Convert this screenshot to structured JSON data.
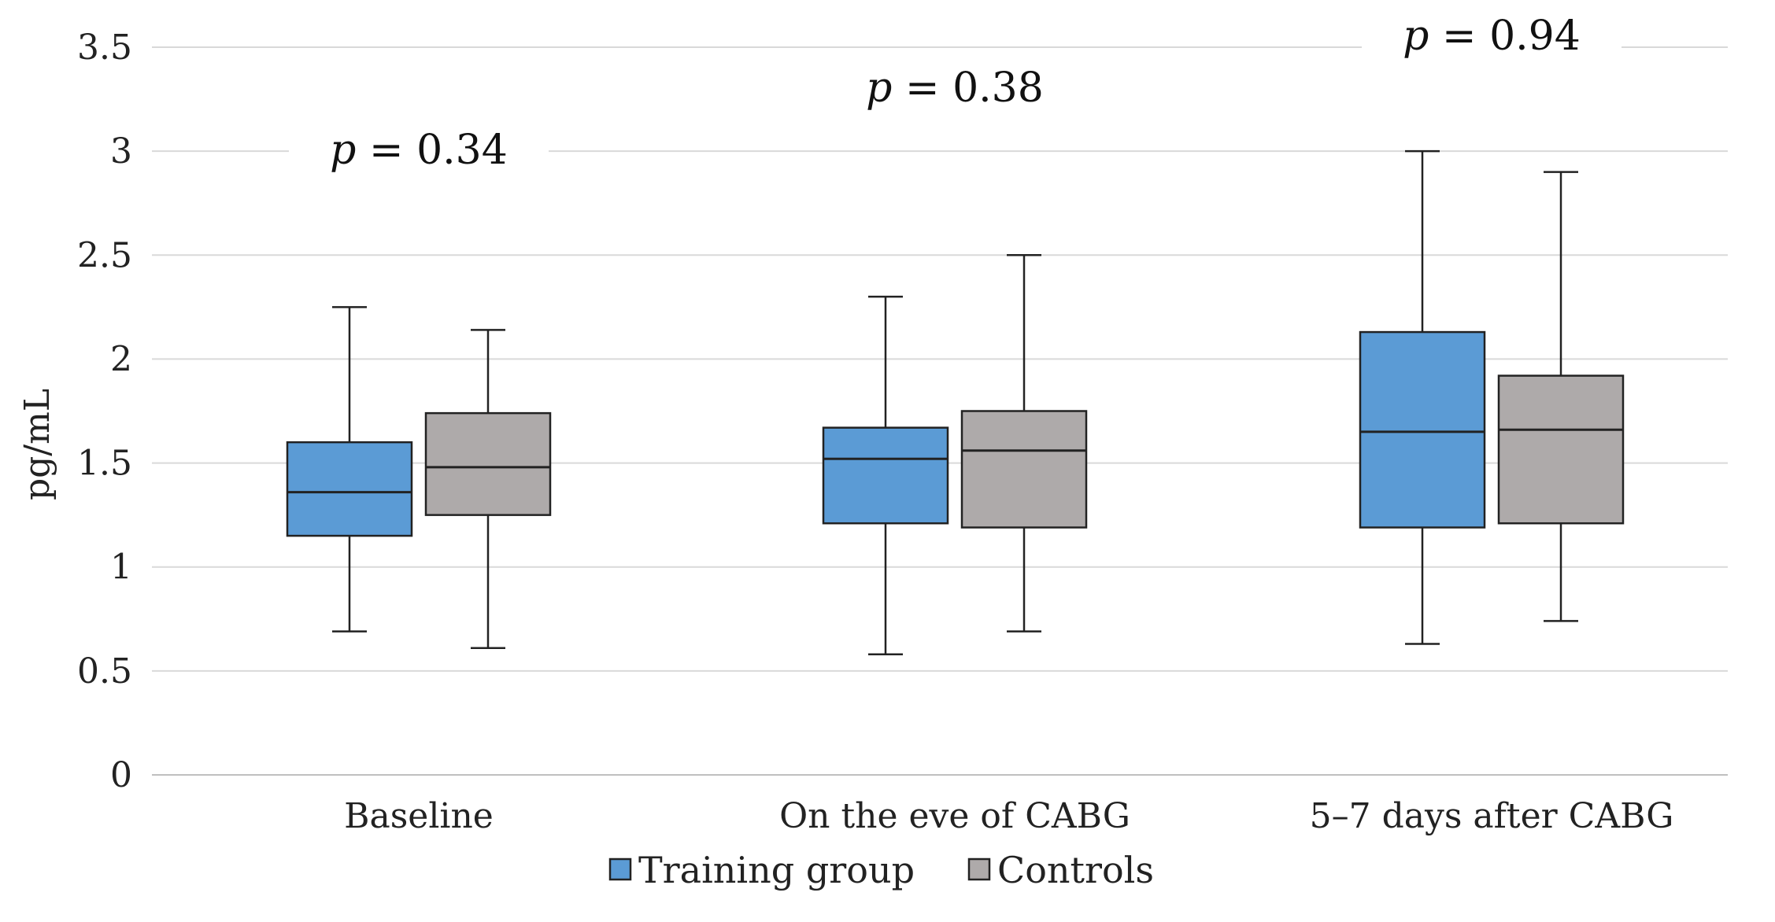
{
  "chart_data": {
    "type": "boxplot",
    "title": "",
    "xlabel": "",
    "ylabel": "pg/mL",
    "ylim": [
      0,
      3.5
    ],
    "yticks": [
      0,
      0.5,
      1,
      1.5,
      2,
      2.5,
      3,
      3.5
    ],
    "ytick_labels": [
      "0",
      "0.5",
      "1",
      "1.5",
      "2",
      "2.5",
      "3",
      "3.5"
    ],
    "grid": true,
    "legend_position": "bottom",
    "categories": [
      "Baseline",
      "On the eve of CABG",
      "5–7 days after CABG"
    ],
    "series": [
      {
        "name": "Training group",
        "color": "#5b9bd5",
        "boxes": [
          {
            "min": 0.69,
            "q1": 1.15,
            "median": 1.36,
            "q3": 1.6,
            "max": 2.25
          },
          {
            "min": 0.58,
            "q1": 1.21,
            "median": 1.52,
            "q3": 1.67,
            "max": 2.3
          },
          {
            "min": 0.63,
            "q1": 1.19,
            "median": 1.65,
            "q3": 2.13,
            "max": 3.0
          }
        ]
      },
      {
        "name": "Controls",
        "color": "#aeaaaa",
        "boxes": [
          {
            "min": 0.61,
            "q1": 1.25,
            "median": 1.48,
            "q3": 1.74,
            "max": 2.14
          },
          {
            "min": 0.69,
            "q1": 1.19,
            "median": 1.56,
            "q3": 1.75,
            "max": 2.5
          },
          {
            "min": 0.74,
            "q1": 1.21,
            "median": 1.66,
            "q3": 1.92,
            "max": 2.9
          }
        ]
      }
    ],
    "annotations": [
      {
        "category": "Baseline",
        "p_symbol": "p",
        "text": " = 0.34",
        "y": 3.0
      },
      {
        "category": "On the eve of CABG",
        "p_symbol": "p",
        "text": " = 0.38",
        "y": 3.3
      },
      {
        "category": "5–7 days after CABG",
        "p_symbol": "p",
        "text": " = 0.94",
        "y": 3.55
      }
    ]
  }
}
